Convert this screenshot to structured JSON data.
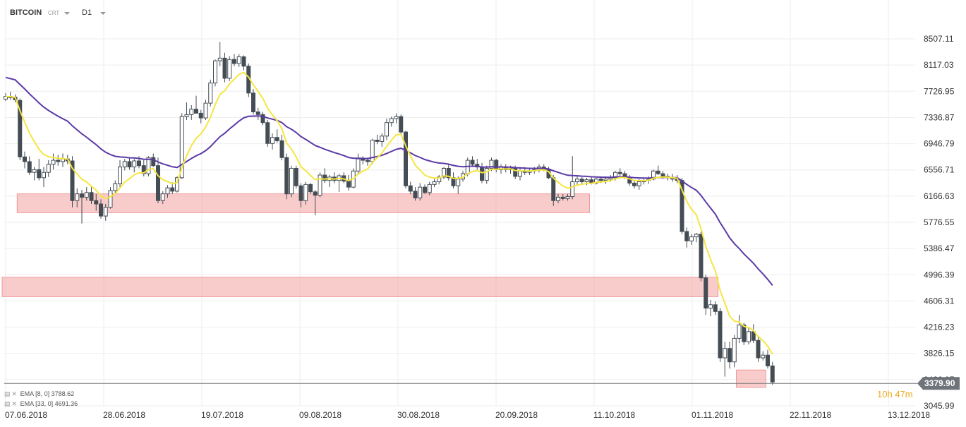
{
  "header": {
    "symbol": "BITCOIN",
    "type": "CRT",
    "timeframe": "D1"
  },
  "indicators": [
    {
      "label": "EMA",
      "params": "[8, 0]",
      "value": "3788.62",
      "color": "#f5e642"
    },
    {
      "label": "EMA",
      "params": "[33, 0]",
      "value": "4691.36",
      "color": "#5b3aa6"
    }
  ],
  "price_label": "3379.90",
  "timer": {
    "hours": "10",
    "hours_unit": "h",
    "minutes": "47",
    "minutes_unit": "m"
  },
  "colors": {
    "bull": "#ffffff",
    "bear": "#444c54",
    "zone": "#f4a3a3",
    "grid": "#eeeeee"
  },
  "chart_data": {
    "type": "candlestick",
    "title": "",
    "xlabel": "",
    "ylabel": "",
    "ylim": [
      3045.99,
      8507.11
    ],
    "y_ticks": [
      "8507.11",
      "8117.03",
      "7726.95",
      "7336.87",
      "6946.79",
      "6556.71",
      "6166.63",
      "5776.55",
      "5386.47",
      "4996.39",
      "4606.31",
      "4216.23",
      "3826.15",
      "3436.07",
      "3045.99"
    ],
    "x_ticks": [
      "07.06.2018",
      "28.06.2018",
      "19.07.2018",
      "09.08.2018",
      "30.08.2018",
      "20.09.2018",
      "11.10.2018",
      "01.11.2018",
      "22.11.2018",
      "13.12.2018"
    ],
    "grid": true,
    "current_price": 3379.9,
    "zones": [
      {
        "from_index": 3,
        "to_index": 122,
        "low": 5920,
        "high": 6200
      },
      {
        "from_index": 0,
        "to_index": 149,
        "low": 4670,
        "high": 4960
      },
      {
        "from_index": 154,
        "to_index": 159,
        "low": 3320,
        "high": 3580
      }
    ],
    "candles": [
      {
        "o": 7610,
        "h": 7700,
        "l": 7580,
        "c": 7650
      },
      {
        "o": 7650,
        "h": 7720,
        "l": 7600,
        "c": 7630
      },
      {
        "o": 7640,
        "h": 7680,
        "l": 7560,
        "c": 7600
      },
      {
        "o": 7590,
        "h": 7620,
        "l": 6700,
        "c": 6750
      },
      {
        "o": 6750,
        "h": 6830,
        "l": 6580,
        "c": 6680
      },
      {
        "o": 6680,
        "h": 6760,
        "l": 6480,
        "c": 6520
      },
      {
        "o": 6520,
        "h": 6600,
        "l": 6400,
        "c": 6560
      },
      {
        "o": 6560,
        "h": 6720,
        "l": 6400,
        "c": 6440
      },
      {
        "o": 6440,
        "h": 6600,
        "l": 6300,
        "c": 6520
      },
      {
        "o": 6520,
        "h": 6700,
        "l": 6450,
        "c": 6640
      },
      {
        "o": 6640,
        "h": 6800,
        "l": 6560,
        "c": 6700
      },
      {
        "o": 6700,
        "h": 6780,
        "l": 6620,
        "c": 6680
      },
      {
        "o": 6680,
        "h": 6800,
        "l": 6600,
        "c": 6720
      },
      {
        "o": 6720,
        "h": 6780,
        "l": 6640,
        "c": 6690
      },
      {
        "o": 6690,
        "h": 6760,
        "l": 6000,
        "c": 6100
      },
      {
        "o": 6100,
        "h": 6280,
        "l": 6000,
        "c": 6200
      },
      {
        "o": 6200,
        "h": 6260,
        "l": 5760,
        "c": 6150
      },
      {
        "o": 6150,
        "h": 6300,
        "l": 6100,
        "c": 6220
      },
      {
        "o": 6220,
        "h": 6300,
        "l": 6050,
        "c": 6100
      },
      {
        "o": 6100,
        "h": 6200,
        "l": 5950,
        "c": 6050
      },
      {
        "o": 6050,
        "h": 6120,
        "l": 5830,
        "c": 5870
      },
      {
        "o": 5870,
        "h": 6050,
        "l": 5800,
        "c": 6000
      },
      {
        "o": 6000,
        "h": 6300,
        "l": 5980,
        "c": 6250
      },
      {
        "o": 6250,
        "h": 6400,
        "l": 6200,
        "c": 6350
      },
      {
        "o": 6350,
        "h": 6700,
        "l": 6300,
        "c": 6600
      },
      {
        "o": 6600,
        "h": 6720,
        "l": 6550,
        "c": 6680
      },
      {
        "o": 6680,
        "h": 6740,
        "l": 6560,
        "c": 6600
      },
      {
        "o": 6600,
        "h": 6720,
        "l": 6520,
        "c": 6690
      },
      {
        "o": 6690,
        "h": 6760,
        "l": 6580,
        "c": 6620
      },
      {
        "o": 6620,
        "h": 6700,
        "l": 6460,
        "c": 6500
      },
      {
        "o": 6500,
        "h": 6760,
        "l": 6460,
        "c": 6740
      },
      {
        "o": 6740,
        "h": 6800,
        "l": 6600,
        "c": 6620
      },
      {
        "o": 6620,
        "h": 6740,
        "l": 6060,
        "c": 6100
      },
      {
        "o": 6100,
        "h": 6240,
        "l": 6050,
        "c": 6200
      },
      {
        "o": 6200,
        "h": 6330,
        "l": 6140,
        "c": 6290
      },
      {
        "o": 6290,
        "h": 6370,
        "l": 6200,
        "c": 6240
      },
      {
        "o": 6240,
        "h": 6460,
        "l": 6220,
        "c": 6440
      },
      {
        "o": 6440,
        "h": 7400,
        "l": 6420,
        "c": 7350
      },
      {
        "o": 7350,
        "h": 7560,
        "l": 7300,
        "c": 7380
      },
      {
        "o": 7380,
        "h": 7520,
        "l": 7300,
        "c": 7460
      },
      {
        "o": 7460,
        "h": 7660,
        "l": 7400,
        "c": 7400
      },
      {
        "o": 7400,
        "h": 7450,
        "l": 7250,
        "c": 7330
      },
      {
        "o": 7330,
        "h": 7600,
        "l": 7300,
        "c": 7550
      },
      {
        "o": 7550,
        "h": 7900,
        "l": 7500,
        "c": 7850
      },
      {
        "o": 7850,
        "h": 8200,
        "l": 7800,
        "c": 8180
      },
      {
        "o": 8180,
        "h": 8460,
        "l": 8100,
        "c": 8220
      },
      {
        "o": 8220,
        "h": 8300,
        "l": 7860,
        "c": 7920
      },
      {
        "o": 7920,
        "h": 8250,
        "l": 7880,
        "c": 8200
      },
      {
        "o": 8200,
        "h": 8280,
        "l": 8100,
        "c": 8140
      },
      {
        "o": 8140,
        "h": 8280,
        "l": 8090,
        "c": 8240
      },
      {
        "o": 8240,
        "h": 8260,
        "l": 8040,
        "c": 8100
      },
      {
        "o": 8100,
        "h": 8140,
        "l": 7640,
        "c": 7700
      },
      {
        "o": 7700,
        "h": 7760,
        "l": 7380,
        "c": 7420
      },
      {
        "o": 7420,
        "h": 7480,
        "l": 7300,
        "c": 7380
      },
      {
        "o": 7380,
        "h": 7420,
        "l": 7220,
        "c": 7260
      },
      {
        "o": 7260,
        "h": 7300,
        "l": 6900,
        "c": 6950
      },
      {
        "o": 6950,
        "h": 7100,
        "l": 6860,
        "c": 7040
      },
      {
        "o": 7040,
        "h": 7160,
        "l": 6960,
        "c": 6990
      },
      {
        "o": 6990,
        "h": 7080,
        "l": 6700,
        "c": 6740
      },
      {
        "o": 6740,
        "h": 6800,
        "l": 6120,
        "c": 6200
      },
      {
        "o": 6200,
        "h": 6620,
        "l": 6150,
        "c": 6580
      },
      {
        "o": 6580,
        "h": 6620,
        "l": 6280,
        "c": 6320
      },
      {
        "o": 6320,
        "h": 6360,
        "l": 6000,
        "c": 6100
      },
      {
        "o": 6100,
        "h": 6380,
        "l": 6040,
        "c": 6340
      },
      {
        "o": 6340,
        "h": 6360,
        "l": 6200,
        "c": 6230
      },
      {
        "o": 6230,
        "h": 6260,
        "l": 5880,
        "c": 6180
      },
      {
        "o": 6180,
        "h": 6520,
        "l": 6150,
        "c": 6480
      },
      {
        "o": 6480,
        "h": 6580,
        "l": 6360,
        "c": 6400
      },
      {
        "o": 6400,
        "h": 6480,
        "l": 6300,
        "c": 6450
      },
      {
        "o": 6450,
        "h": 6520,
        "l": 6360,
        "c": 6400
      },
      {
        "o": 6400,
        "h": 6500,
        "l": 6230,
        "c": 6470
      },
      {
        "o": 6470,
        "h": 6520,
        "l": 6360,
        "c": 6390
      },
      {
        "o": 6390,
        "h": 6480,
        "l": 6250,
        "c": 6300
      },
      {
        "o": 6300,
        "h": 6580,
        "l": 6280,
        "c": 6540
      },
      {
        "o": 6540,
        "h": 6800,
        "l": 6480,
        "c": 6720
      },
      {
        "o": 6720,
        "h": 6760,
        "l": 6640,
        "c": 6700
      },
      {
        "o": 6700,
        "h": 6740,
        "l": 6620,
        "c": 6680
      },
      {
        "o": 6680,
        "h": 7020,
        "l": 6640,
        "c": 7000
      },
      {
        "o": 7000,
        "h": 7080,
        "l": 6940,
        "c": 6980
      },
      {
        "o": 6980,
        "h": 7100,
        "l": 6900,
        "c": 7060
      },
      {
        "o": 7060,
        "h": 7320,
        "l": 7000,
        "c": 7260
      },
      {
        "o": 7260,
        "h": 7350,
        "l": 7200,
        "c": 7320
      },
      {
        "o": 7320,
        "h": 7400,
        "l": 7250,
        "c": 7350
      },
      {
        "o": 7350,
        "h": 7380,
        "l": 7080,
        "c": 7120
      },
      {
        "o": 7120,
        "h": 7140,
        "l": 6280,
        "c": 6320
      },
      {
        "o": 6320,
        "h": 6380,
        "l": 6200,
        "c": 6240
      },
      {
        "o": 6240,
        "h": 6300,
        "l": 6100,
        "c": 6140
      },
      {
        "o": 6140,
        "h": 6360,
        "l": 6100,
        "c": 6300
      },
      {
        "o": 6300,
        "h": 6340,
        "l": 6200,
        "c": 6220
      },
      {
        "o": 6220,
        "h": 6380,
        "l": 6180,
        "c": 6340
      },
      {
        "o": 6340,
        "h": 6420,
        "l": 6300,
        "c": 6380
      },
      {
        "o": 6380,
        "h": 6480,
        "l": 6340,
        "c": 6450
      },
      {
        "o": 6450,
        "h": 6600,
        "l": 6420,
        "c": 6580
      },
      {
        "o": 6580,
        "h": 6640,
        "l": 6400,
        "c": 6440
      },
      {
        "o": 6440,
        "h": 6520,
        "l": 6280,
        "c": 6320
      },
      {
        "o": 6320,
        "h": 6460,
        "l": 6200,
        "c": 6420
      },
      {
        "o": 6420,
        "h": 6540,
        "l": 6380,
        "c": 6500
      },
      {
        "o": 6500,
        "h": 6740,
        "l": 6460,
        "c": 6700
      },
      {
        "o": 6700,
        "h": 6760,
        "l": 6600,
        "c": 6640
      },
      {
        "o": 6640,
        "h": 6720,
        "l": 6560,
        "c": 6600
      },
      {
        "o": 6600,
        "h": 6660,
        "l": 6360,
        "c": 6400
      },
      {
        "o": 6400,
        "h": 6620,
        "l": 6350,
        "c": 6580
      },
      {
        "o": 6580,
        "h": 6740,
        "l": 6540,
        "c": 6700
      },
      {
        "o": 6700,
        "h": 6720,
        "l": 6520,
        "c": 6560
      },
      {
        "o": 6560,
        "h": 6640,
        "l": 6500,
        "c": 6600
      },
      {
        "o": 6600,
        "h": 6640,
        "l": 6520,
        "c": 6560
      },
      {
        "o": 6560,
        "h": 6620,
        "l": 6500,
        "c": 6580
      },
      {
        "o": 6580,
        "h": 6620,
        "l": 6420,
        "c": 6460
      },
      {
        "o": 6460,
        "h": 6580,
        "l": 6400,
        "c": 6540
      },
      {
        "o": 6540,
        "h": 6600,
        "l": 6480,
        "c": 6520
      },
      {
        "o": 6520,
        "h": 6580,
        "l": 6480,
        "c": 6540
      },
      {
        "o": 6540,
        "h": 6600,
        "l": 6500,
        "c": 6560
      },
      {
        "o": 6560,
        "h": 6640,
        "l": 6520,
        "c": 6600
      },
      {
        "o": 6600,
        "h": 6640,
        "l": 6540,
        "c": 6560
      },
      {
        "o": 6560,
        "h": 6600,
        "l": 6420,
        "c": 6440
      },
      {
        "o": 6440,
        "h": 6480,
        "l": 6020,
        "c": 6100
      },
      {
        "o": 6100,
        "h": 6200,
        "l": 6060,
        "c": 6150
      },
      {
        "o": 6150,
        "h": 6200,
        "l": 6100,
        "c": 6130
      },
      {
        "o": 6130,
        "h": 6200,
        "l": 6100,
        "c": 6160
      },
      {
        "o": 6160,
        "h": 6760,
        "l": 6120,
        "c": 6380
      },
      {
        "o": 6380,
        "h": 6480,
        "l": 6320,
        "c": 6420
      },
      {
        "o": 6420,
        "h": 6450,
        "l": 6340,
        "c": 6380
      },
      {
        "o": 6380,
        "h": 6440,
        "l": 6330,
        "c": 6410
      },
      {
        "o": 6410,
        "h": 6450,
        "l": 6340,
        "c": 6360
      },
      {
        "o": 6360,
        "h": 6440,
        "l": 6340,
        "c": 6420
      },
      {
        "o": 6420,
        "h": 6460,
        "l": 6360,
        "c": 6400
      },
      {
        "o": 6400,
        "h": 6460,
        "l": 6350,
        "c": 6420
      },
      {
        "o": 6420,
        "h": 6480,
        "l": 6380,
        "c": 6440
      },
      {
        "o": 6440,
        "h": 6540,
        "l": 6400,
        "c": 6520
      },
      {
        "o": 6520,
        "h": 6580,
        "l": 6460,
        "c": 6500
      },
      {
        "o": 6500,
        "h": 6540,
        "l": 6420,
        "c": 6440
      },
      {
        "o": 6440,
        "h": 6480,
        "l": 6320,
        "c": 6360
      },
      {
        "o": 6360,
        "h": 6400,
        "l": 6280,
        "c": 6320
      },
      {
        "o": 6320,
        "h": 6420,
        "l": 6260,
        "c": 6380
      },
      {
        "o": 6380,
        "h": 6440,
        "l": 6340,
        "c": 6400
      },
      {
        "o": 6400,
        "h": 6460,
        "l": 6350,
        "c": 6420
      },
      {
        "o": 6420,
        "h": 6560,
        "l": 6400,
        "c": 6540
      },
      {
        "o": 6540,
        "h": 6620,
        "l": 6480,
        "c": 6500
      },
      {
        "o": 6500,
        "h": 6540,
        "l": 6420,
        "c": 6460
      },
      {
        "o": 6460,
        "h": 6500,
        "l": 6400,
        "c": 6440
      },
      {
        "o": 6440,
        "h": 6500,
        "l": 6380,
        "c": 6420
      },
      {
        "o": 6420,
        "h": 6480,
        "l": 6360,
        "c": 6400
      },
      {
        "o": 6400,
        "h": 6440,
        "l": 5600,
        "c": 5640
      },
      {
        "o": 5640,
        "h": 5700,
        "l": 5400,
        "c": 5500
      },
      {
        "o": 5500,
        "h": 5600,
        "l": 5440,
        "c": 5560
      },
      {
        "o": 5560,
        "h": 5620,
        "l": 5480,
        "c": 5600
      },
      {
        "o": 5600,
        "h": 5640,
        "l": 4900,
        "c": 4950
      },
      {
        "o": 4950,
        "h": 5000,
        "l": 4400,
        "c": 4500
      },
      {
        "o": 4500,
        "h": 4620,
        "l": 4380,
        "c": 4550
      },
      {
        "o": 4550,
        "h": 4600,
        "l": 4400,
        "c": 4450
      },
      {
        "o": 4450,
        "h": 4500,
        "l": 3700,
        "c": 3760
      },
      {
        "o": 3760,
        "h": 4000,
        "l": 3480,
        "c": 3900
      },
      {
        "o": 3900,
        "h": 4000,
        "l": 3600,
        "c": 3700
      },
      {
        "o": 3700,
        "h": 4100,
        "l": 3620,
        "c": 4050
      },
      {
        "o": 4050,
        "h": 4400,
        "l": 3980,
        "c": 4250
      },
      {
        "o": 4250,
        "h": 4280,
        "l": 3950,
        "c": 4000
      },
      {
        "o": 4000,
        "h": 4200,
        "l": 3960,
        "c": 4150
      },
      {
        "o": 4150,
        "h": 4260,
        "l": 3980,
        "c": 4020
      },
      {
        "o": 4020,
        "h": 4080,
        "l": 3700,
        "c": 3760
      },
      {
        "o": 3760,
        "h": 3860,
        "l": 3720,
        "c": 3800
      },
      {
        "o": 3800,
        "h": 3880,
        "l": 3600,
        "c": 3640
      },
      {
        "o": 3640,
        "h": 3700,
        "l": 3360,
        "c": 3400
      }
    ],
    "series": [
      {
        "name": "EMA [8, 0]",
        "color": "#f5e642"
      },
      {
        "name": "EMA [33, 0]",
        "color": "#5b3aa6"
      }
    ]
  }
}
